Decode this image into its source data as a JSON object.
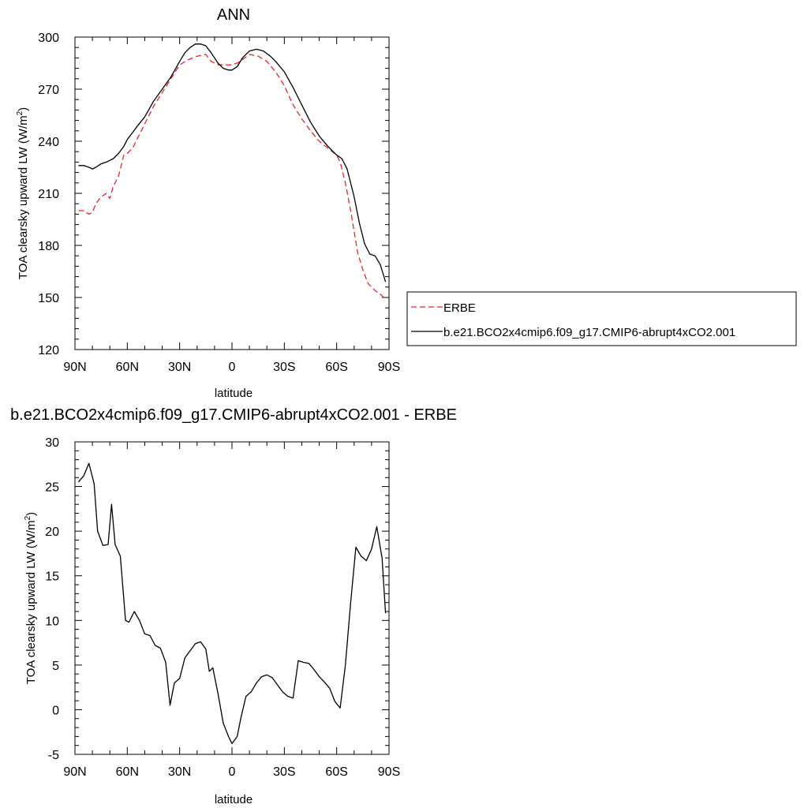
{
  "chart_data": [
    {
      "type": "line",
      "title": "ANN",
      "xlabel": "latitude",
      "ylabel": "TOA clearsky upward LW (W/m²)",
      "ylabel_main": "TOA clearsky upward LW (W/m",
      "ylabel_sup": "2",
      "ylabel_close": ")",
      "xlim": [
        90,
        -90
      ],
      "ylim": [
        120,
        300
      ],
      "x_ticks": [
        90,
        60,
        30,
        0,
        -30,
        -60,
        -90
      ],
      "x_tick_labels": [
        "90N",
        "60N",
        "30N",
        "0",
        "30S",
        "60S",
        "90S"
      ],
      "y_ticks": [
        120,
        150,
        180,
        210,
        240,
        270,
        300
      ],
      "y_tick_labels": [
        "120",
        "150",
        "180",
        "210",
        "240",
        "270",
        "300"
      ],
      "legend": {
        "placement": "right-outside"
      },
      "series": [
        {
          "name": "ERBE",
          "color": "#e8262b",
          "dash": "dashed",
          "x": [
            88,
            85,
            82,
            80,
            78,
            75,
            72,
            70,
            68,
            65,
            62,
            60,
            57,
            54,
            50,
            45,
            40,
            35,
            30,
            25,
            20,
            15,
            12,
            8,
            5,
            2,
            0,
            -3,
            -6,
            -10,
            -15,
            -20,
            -25,
            -30,
            -35,
            -40,
            -45,
            -50,
            -55,
            -60,
            -62,
            -65,
            -68,
            -70,
            -72,
            -75,
            -78,
            -82,
            -85,
            -88
          ],
          "y": [
            200,
            200,
            198,
            199,
            204,
            208,
            210,
            207,
            214,
            220,
            232,
            233,
            236,
            242,
            250,
            260,
            268,
            276,
            284,
            287,
            289,
            290,
            286,
            284,
            284,
            284,
            284,
            285,
            287,
            290,
            289,
            286,
            280,
            272,
            261,
            253,
            246,
            240,
            236,
            232,
            228,
            216,
            200,
            188,
            176,
            166,
            158,
            154,
            152,
            149
          ]
        },
        {
          "name": "b.e21.BCO2x4cmip6.f09_g17.CMIP6-abrupt4xCO2.001",
          "color": "#000000",
          "dash": "solid",
          "x": [
            88,
            85,
            82,
            80,
            78,
            75,
            72,
            68,
            65,
            62,
            60,
            57,
            54,
            50,
            45,
            40,
            35,
            30,
            27,
            24,
            21,
            18,
            15,
            12,
            10,
            8,
            5,
            2,
            0,
            -3,
            -6,
            -10,
            -14,
            -18,
            -22,
            -25,
            -30,
            -35,
            -40,
            -45,
            -50,
            -55,
            -60,
            -63,
            -66,
            -70,
            -73,
            -76,
            -79,
            -82,
            -85,
            -88
          ],
          "y": [
            226,
            226,
            225,
            224,
            225,
            227,
            228,
            230,
            233,
            237,
            241,
            245,
            249,
            254,
            263,
            270,
            277,
            286,
            291,
            294,
            296,
            296,
            295,
            291,
            288,
            285,
            282,
            281,
            281,
            283,
            288,
            292,
            293,
            292,
            289,
            286,
            280,
            271,
            261,
            251,
            243,
            237,
            232,
            230,
            224,
            208,
            193,
            181,
            175,
            174,
            169,
            159
          ]
        }
      ]
    },
    {
      "type": "line",
      "title": "b.e21.BCO2x4cmip6.f09_g17.CMIP6-abrupt4xCO2.001 - ERBE",
      "xlabel": "latitude",
      "ylabel": "TOA clearsky upward LW (W/m²)",
      "ylabel_main": "TOA clearsky upward LW (W/m",
      "ylabel_sup": "2",
      "ylabel_close": ")",
      "xlim": [
        90,
        -90
      ],
      "ylim": [
        -5,
        30
      ],
      "x_ticks": [
        90,
        60,
        30,
        0,
        -30,
        -60,
        -90
      ],
      "x_tick_labels": [
        "90N",
        "60N",
        "30N",
        "0",
        "30S",
        "60S",
        "90S"
      ],
      "y_ticks": [
        -5,
        0,
        5,
        10,
        15,
        20,
        25,
        30
      ],
      "y_tick_labels": [
        "-5",
        "0",
        "5",
        "10",
        "15",
        "20",
        "25",
        "30"
      ],
      "series": [
        {
          "color": "#000000",
          "dash": "solid",
          "x": [
            88,
            85,
            82,
            79,
            77,
            74,
            71,
            69,
            67,
            64,
            61,
            59,
            56,
            53,
            50,
            47,
            44,
            41,
            38,
            35.5,
            33,
            30,
            27,
            24,
            21,
            18,
            15,
            13,
            11,
            8,
            5,
            2,
            0,
            -3,
            -5,
            -8,
            -11,
            -14,
            -17,
            -20,
            -23,
            -26,
            -29,
            -32,
            -35,
            -38,
            -41,
            -44,
            -47,
            -50,
            -53,
            -56,
            -59,
            -62,
            -65,
            -68,
            -71,
            -74,
            -77,
            -80,
            -83,
            -86,
            -88
          ],
          "y": [
            25.5,
            26.2,
            27.6,
            25.3,
            20.0,
            18.4,
            18.5,
            23.0,
            18.5,
            17.2,
            10.0,
            9.8,
            11.0,
            10.0,
            8.5,
            8.3,
            7.2,
            6.9,
            5.3,
            0.5,
            3.0,
            3.5,
            5.8,
            6.6,
            7.4,
            7.6,
            6.8,
            4.3,
            4.7,
            1.8,
            -1.5,
            -3.0,
            -3.8,
            -3.0,
            -1.0,
            1.5,
            2.0,
            3.0,
            3.7,
            3.9,
            3.6,
            2.8,
            2.0,
            1.5,
            1.3,
            5.5,
            5.3,
            5.2,
            4.5,
            3.7,
            3.1,
            2.4,
            0.9,
            0.2,
            5.0,
            12.0,
            18.2,
            17.2,
            16.7,
            18.0,
            20.5,
            17.0,
            10.8
          ]
        }
      ]
    }
  ]
}
